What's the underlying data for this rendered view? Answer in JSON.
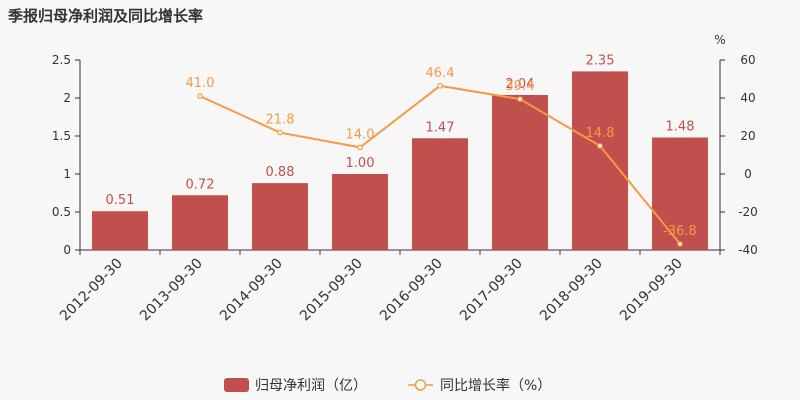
{
  "chart_data": {
    "type": "bar",
    "title": "季报归母净利润及同比增长率",
    "categories": [
      "2012-09-30",
      "2013-09-30",
      "2014-09-30",
      "2015-09-30",
      "2016-09-30",
      "2017-09-30",
      "2018-09-30",
      "2019-09-30"
    ],
    "series": [
      {
        "name": "归母净利润（亿）",
        "type": "bar",
        "axis": "left",
        "color": "#c0504d",
        "values": [
          0.51,
          0.72,
          0.88,
          1.0,
          1.47,
          2.04,
          2.35,
          1.48
        ],
        "labels": [
          "0.51",
          "0.72",
          "0.88",
          "1.00",
          "1.47",
          "2.04",
          "2.35",
          "1.48"
        ]
      },
      {
        "name": "同比增长率（%）",
        "type": "line",
        "axis": "right",
        "color": "#f79a45",
        "values": [
          null,
          41.0,
          21.8,
          14.0,
          46.4,
          39.4,
          14.8,
          -36.8
        ],
        "labels": [
          "",
          "41.0",
          "21.8",
          "14.0",
          "46.4",
          "39.4",
          "14.8",
          "-36.8"
        ]
      }
    ],
    "y_left": {
      "ylim": [
        0,
        2.5
      ],
      "ticks": [
        "0",
        "0.5",
        "1",
        "1.5",
        "2",
        "2.5"
      ]
    },
    "y_right": {
      "ylim": [
        -40,
        60
      ],
      "ticks": [
        "-40",
        "-20",
        "0",
        "20",
        "40",
        "60"
      ],
      "unit": "%"
    },
    "grid": false,
    "legend_position": "bottom"
  }
}
